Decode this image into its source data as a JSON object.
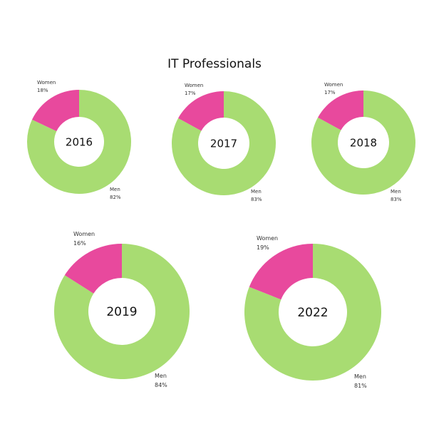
{
  "title": "IT Professionals",
  "colors": {
    "women": "#e8499d",
    "men": "#a8dc72",
    "background": "#ffffff"
  },
  "chart_data": [
    {
      "type": "pie",
      "center_label": "2016",
      "categories": [
        "Women",
        "Men"
      ],
      "values": [
        18,
        82
      ],
      "value_labels": [
        "18%",
        "82%"
      ]
    },
    {
      "type": "pie",
      "center_label": "2017",
      "categories": [
        "Women",
        "Men"
      ],
      "values": [
        17,
        83
      ],
      "value_labels": [
        "17%",
        "83%"
      ]
    },
    {
      "type": "pie",
      "center_label": "2018",
      "categories": [
        "Women",
        "Men"
      ],
      "values": [
        17,
        83
      ],
      "value_labels": [
        "17%",
        "83%"
      ]
    },
    {
      "type": "pie",
      "center_label": "2019",
      "categories": [
        "Women",
        "Men"
      ],
      "values": [
        16,
        84
      ],
      "value_labels": [
        "16%",
        "84%"
      ]
    },
    {
      "type": "pie",
      "center_label": "2022",
      "categories": [
        "Women",
        "Men"
      ],
      "values": [
        19,
        81
      ],
      "value_labels": [
        "19%",
        "81%"
      ]
    }
  ]
}
